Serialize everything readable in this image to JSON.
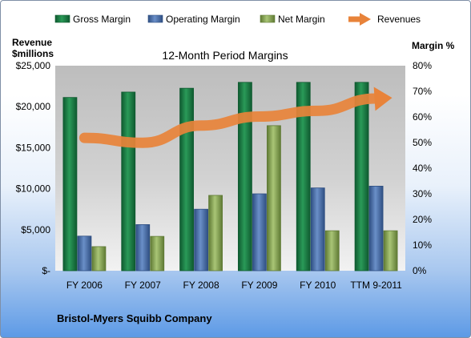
{
  "chart_data": {
    "type": "bar",
    "title": "12-Month Period Margins",
    "categories": [
      "FY 2006",
      "FY 2007",
      "FY 2008",
      "FY 2009",
      "FY 2010",
      "TTM 9-2011"
    ],
    "series": [
      {
        "name": "Gross Margin",
        "axis": "right",
        "color": "#1e7a45",
        "values": [
          67.6,
          69.7,
          71.2,
          73.5,
          73.5,
          73.5
        ]
      },
      {
        "name": "Operating Margin",
        "axis": "right",
        "color": "#4a6fa8",
        "values": [
          13.5,
          18.0,
          24.0,
          30.0,
          32.3,
          33.0
        ]
      },
      {
        "name": "Net Margin",
        "axis": "right",
        "color": "#8aa95a",
        "values": [
          9.4,
          13.4,
          29.4,
          56.6,
          15.6,
          15.6
        ]
      },
      {
        "name": "Revenues",
        "type": "line",
        "axis": "left",
        "color": "#e8833a",
        "values": [
          16200,
          15600,
          17700,
          18800,
          19500,
          21000
        ]
      }
    ],
    "left_axis": {
      "title_line1": "Revenue",
      "title_line2": "$millions",
      "ylim": [
        0,
        25000
      ],
      "ticks": [
        0,
        5000,
        10000,
        15000,
        20000,
        25000
      ],
      "tick_labels": [
        "$-",
        "$5,000",
        "$10,000",
        "$15,000",
        "$20,000",
        "$25,000"
      ]
    },
    "right_axis": {
      "title": "Margin %",
      "ylim": [
        0,
        80
      ],
      "ticks": [
        0,
        10,
        20,
        30,
        40,
        50,
        60,
        70,
        80
      ],
      "tick_labels": [
        "0%",
        "10%",
        "20%",
        "30%",
        "40%",
        "50%",
        "60%",
        "70%",
        "80%"
      ]
    },
    "legend_position": "top",
    "grid": false
  },
  "footer": {
    "company": "Bristol-Myers Squibb Company"
  }
}
